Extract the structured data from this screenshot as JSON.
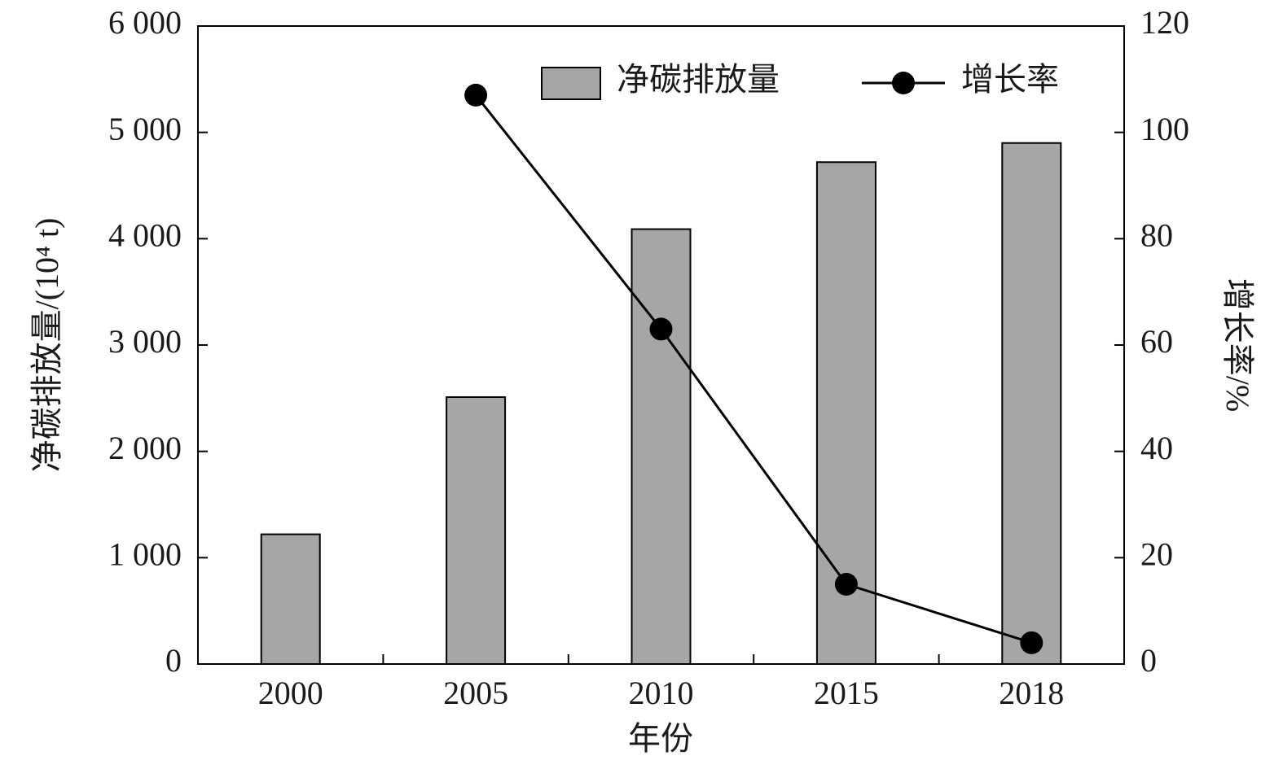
{
  "chart_data": {
    "type": "bar",
    "x_label": "年份",
    "y_label": "净碳排放量/(10⁴ t)",
    "y2_label": "增长率/%",
    "categories": [
      "2000",
      "2005",
      "2010",
      "2015",
      "2018"
    ],
    "series": [
      {
        "name": "净碳排放量",
        "type": "bar",
        "color": "#a6a6a6",
        "values": [
          1220,
          2510,
          4090,
          4720,
          4900
        ]
      },
      {
        "name": "增长率",
        "type": "line",
        "color": "#000000",
        "axis": "y2",
        "values": [
          null,
          107,
          63,
          15,
          4
        ]
      }
    ],
    "ylim": [
      0,
      6000
    ],
    "yticks": [
      0,
      {
        "value": 1000,
        "label": "1 000"
      },
      {
        "value": 2000,
        "label": "2 000"
      },
      {
        "value": 3000,
        "label": "3 000"
      },
      {
        "value": 4000,
        "label": "4 000"
      },
      {
        "value": 5000,
        "label": "5 000"
      },
      {
        "value": 6000,
        "label": "6 000"
      }
    ],
    "y2lim": [
      0,
      120
    ],
    "y2ticks": [
      0,
      20,
      40,
      60,
      80,
      100,
      120
    ],
    "legend": "top-right"
  }
}
